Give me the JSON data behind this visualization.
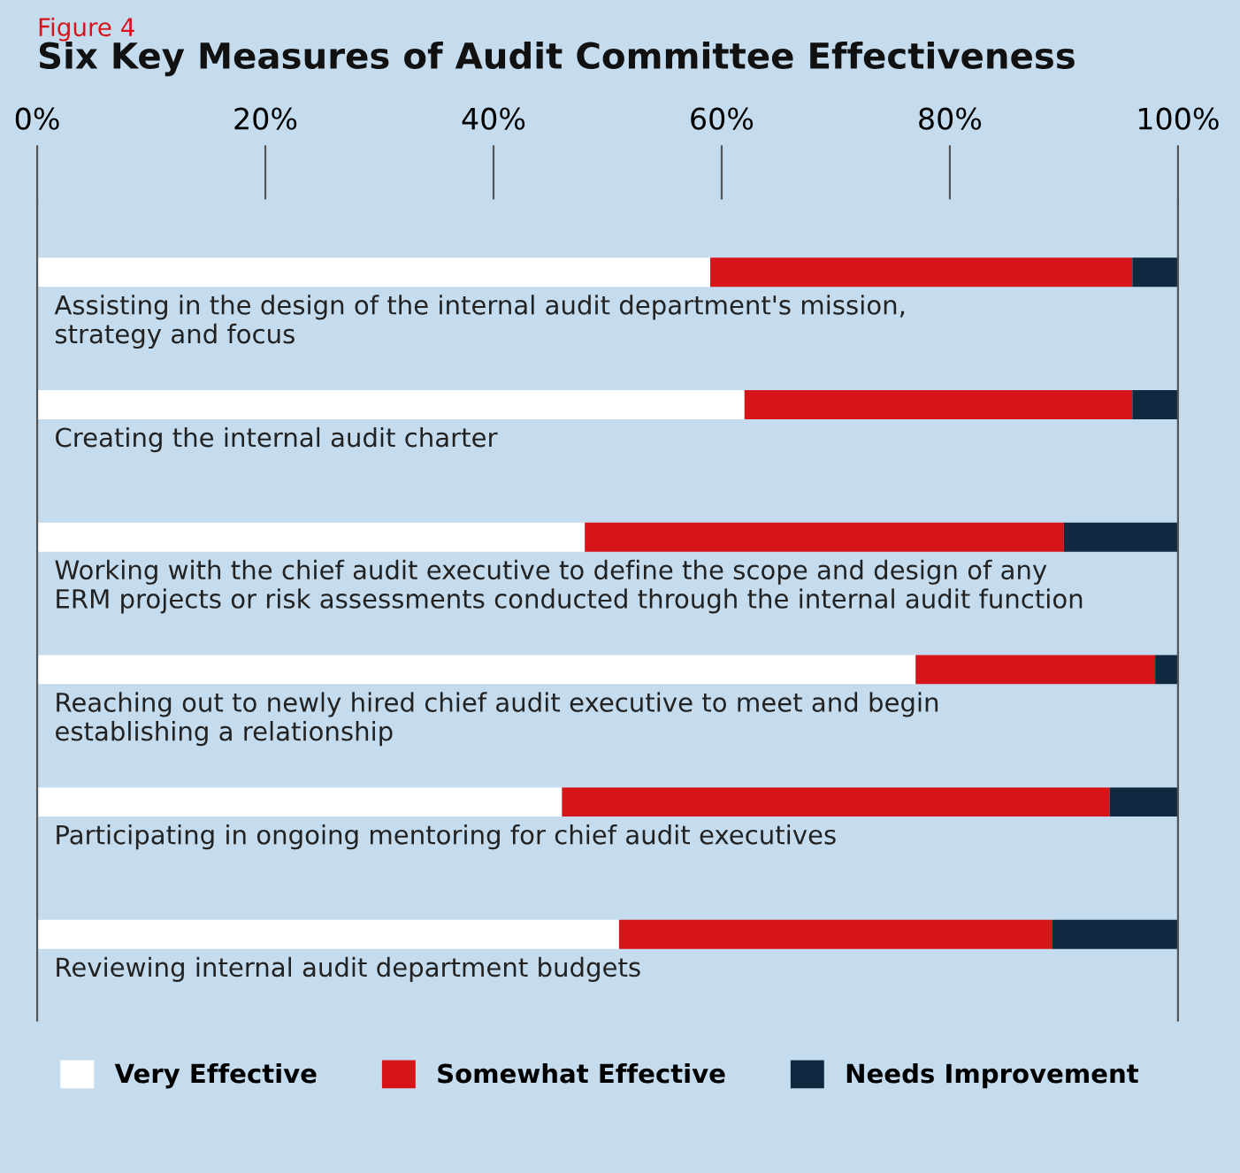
{
  "chart_data": {
    "type": "bar",
    "orientation": "horizontal",
    "stacked": true,
    "subtitle": "Figure 4",
    "title": "Six Key Measures of Audit Committee Effectiveness",
    "categories": [
      "Assisting in the design of the internal audit department's mission,\nstrategy and focus",
      "Creating the internal audit charter",
      "Working with the chief audit executive to define the scope and design of any\nERM projects or risk assessments conducted through the internal audit function",
      "Reaching out to newly hired chief audit executive to meet and begin\nestablishing a relationship",
      "Participating in ongoing mentoring for chief audit executives",
      "Reviewing internal audit department budgets"
    ],
    "series": [
      {
        "name": "Very Effective",
        "color": "#ffffff",
        "values": [
          59,
          62,
          48,
          77,
          46,
          51
        ]
      },
      {
        "name": "Somewhat Effective",
        "color": "#d7141a",
        "values": [
          37,
          34,
          42,
          21,
          48,
          38
        ]
      },
      {
        "name": "Needs Improvement",
        "color": "#0f2a40",
        "values": [
          4,
          4,
          10,
          2,
          6,
          11
        ]
      }
    ],
    "xlim": [
      0,
      100
    ],
    "xticks": [
      {
        "value": 0,
        "label": "0%"
      },
      {
        "value": 20,
        "label": "20%"
      },
      {
        "value": 40,
        "label": "40%"
      },
      {
        "value": 60,
        "label": "60%"
      },
      {
        "value": 80,
        "label": "80%"
      },
      {
        "value": 100,
        "label": "100%"
      }
    ],
    "tick_labels": "x",
    "grid": false,
    "legend": "bottom"
  }
}
